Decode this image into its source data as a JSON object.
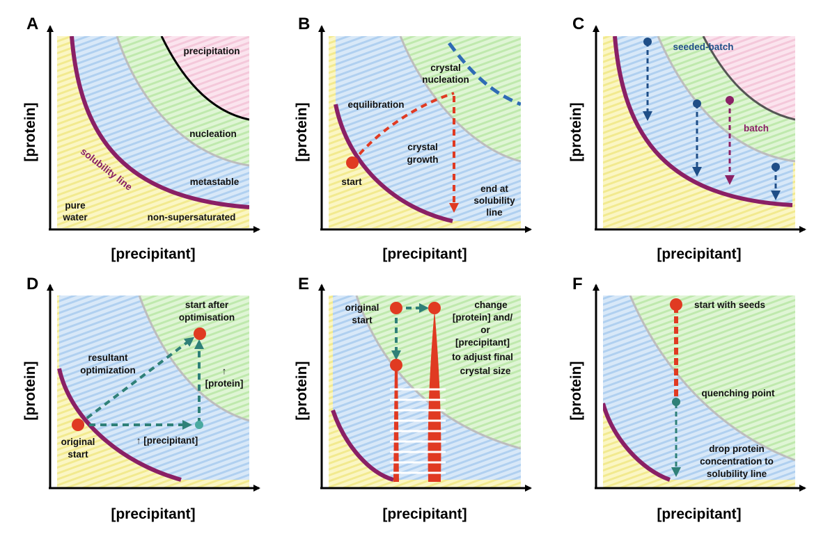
{
  "colors": {
    "solubility": "#8a2065",
    "supersolubility": "#bdbdbd",
    "precipitation_boundary": "#000000",
    "red_path": "#e03a22",
    "blue_marker": "#1f4e87",
    "teal_marker": "#2f8078",
    "batch_marker": "#8a2065",
    "zone_undersat": "#f7f2a8",
    "zone_metastable": "#b9d7f3",
    "zone_nucleation": "#c5eeb6",
    "zone_precipitation": "#f7cfe0"
  },
  "axes": {
    "x_label": "[precipitant]",
    "y_label": "[protein]"
  },
  "panels": [
    {
      "letter": "A",
      "labels": {
        "precipitation": "precipitation",
        "nucleation": "nucleation",
        "metastable": "metastable",
        "solubility_line": "solubility line",
        "pure_water_1": "pure",
        "pure_water_2": "water",
        "non_supersaturated": "non-supersaturated"
      }
    },
    {
      "letter": "B",
      "labels": {
        "crystal_nucleation_1": "crystal",
        "crystal_nucleation_2": "nucleation",
        "equilibration": "equilibration",
        "crystal_growth_1": "crystal",
        "crystal_growth_2": "growth",
        "start": "start",
        "end_1": "end at",
        "end_2": "solubility",
        "end_3": "line"
      }
    },
    {
      "letter": "C",
      "labels": {
        "seeded_batch": "seeded-batch",
        "batch": "batch"
      }
    },
    {
      "letter": "D",
      "labels": {
        "start_after_1": "start after",
        "start_after_2": "optimisation",
        "resultant_1": "resultant",
        "resultant_2": "optimization",
        "protein_arrow": "↑",
        "protein_bracket": "[protein]",
        "precipitant_arrow": "↑ [precipitant]",
        "original_1": "original",
        "original_2": "start"
      }
    },
    {
      "letter": "E",
      "labels": {
        "original_1": "original",
        "original_2": "start",
        "change_1": "change",
        "change_2": "[protein] and/",
        "change_3": "or",
        "change_4": "[precipitant]",
        "change_5": "to adjust final",
        "change_6": "crystal size"
      }
    },
    {
      "letter": "F",
      "labels": {
        "start_with_seeds": "start with seeds",
        "quenching_point": "quenching point",
        "drop_1": "drop protein",
        "drop_2": "concentration to",
        "drop_3": "solubility line"
      }
    }
  ]
}
